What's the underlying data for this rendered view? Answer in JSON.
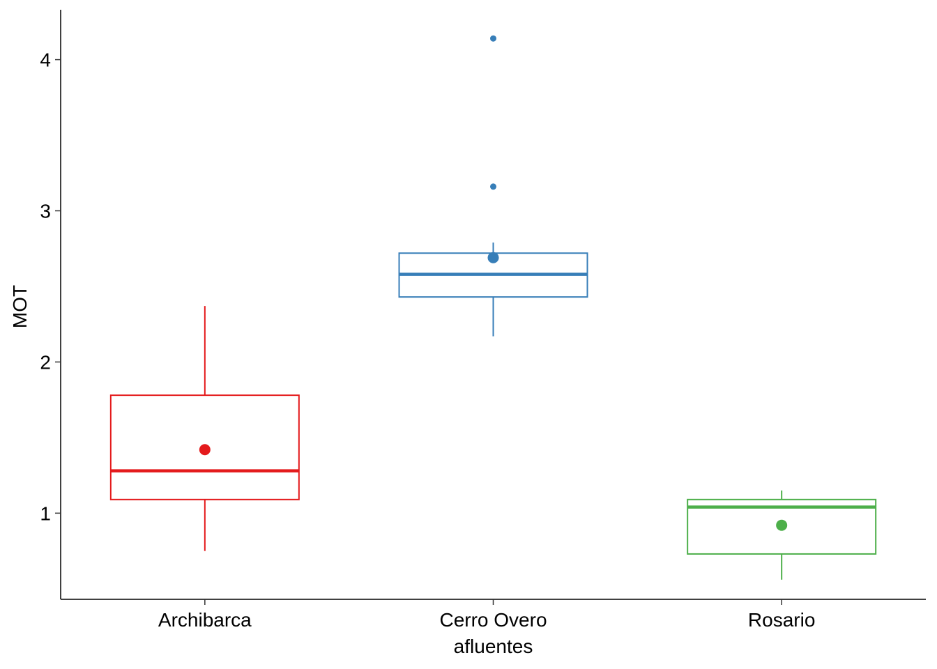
{
  "chart_data": {
    "type": "boxplot",
    "title": "",
    "xlabel": "",
    "ylabel": "MOT",
    "ylim": [
      0.43,
      4.33
    ],
    "yticks": [
      1,
      2,
      3,
      4
    ],
    "ytick_labels": [
      "1",
      "2",
      "3",
      "4"
    ],
    "grid": false,
    "legend": "none",
    "categories": [
      {
        "id": "archibarca",
        "lines": [
          "Archibarca"
        ]
      },
      {
        "id": "cerro-overo",
        "lines": [
          "Cerro Overo",
          "afluentes"
        ]
      },
      {
        "id": "rosario",
        "lines": [
          "Rosario"
        ]
      }
    ],
    "series": [
      {
        "name": "Archibarca",
        "color": "#e41a1c",
        "whisker_low": 0.75,
        "q1": 1.09,
        "median": 1.28,
        "q3": 1.78,
        "whisker_high": 2.37,
        "mean": 1.42,
        "outliers": []
      },
      {
        "name": "Cerro Overo afluentes",
        "color": "#377eb8",
        "whisker_low": 2.17,
        "q1": 2.43,
        "median": 2.58,
        "q3": 2.72,
        "whisker_high": 2.79,
        "mean": 2.69,
        "outliers": [
          3.16,
          4.14
        ]
      },
      {
        "name": "Rosario",
        "color": "#4daf4a",
        "whisker_low": 0.56,
        "q1": 0.73,
        "median": 1.04,
        "q3": 1.09,
        "whisker_high": 1.15,
        "mean": 0.92,
        "outliers": []
      }
    ]
  }
}
